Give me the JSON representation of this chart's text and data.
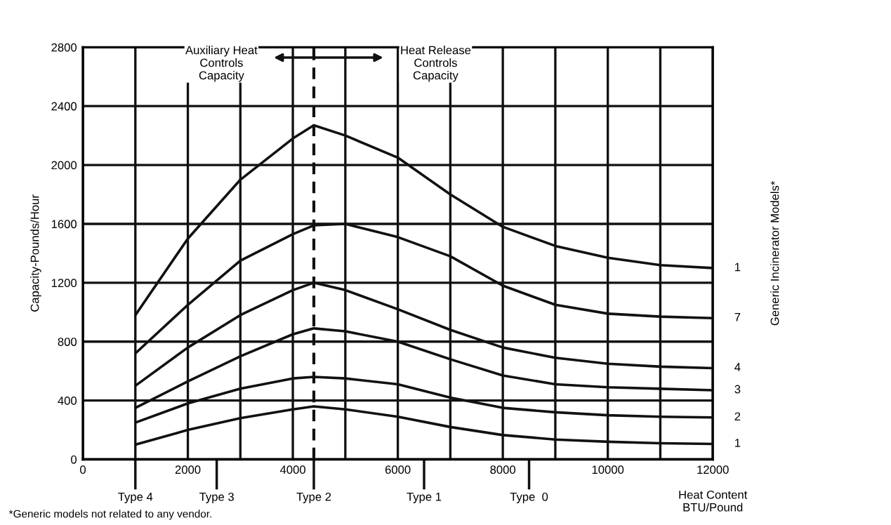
{
  "chart_data": {
    "type": "line",
    "xlabel": "Heat Content\nBTU/Pound",
    "ylabel": "Capacity-Pounds/Hour",
    "xlim": [
      0,
      12000
    ],
    "ylim": [
      0,
      2800
    ],
    "xticks": [
      0,
      {
        "value": 1000,
        "label": null
      },
      2000,
      {
        "value": 3000,
        "label": null
      },
      4000,
      {
        "value": 5000,
        "label": null
      },
      6000,
      {
        "value": 7000,
        "label": null
      },
      8000,
      {
        "value": 9000,
        "label": null
      },
      10000,
      {
        "value": 11000,
        "label": null
      },
      12000
    ],
    "yticks": [
      0,
      400,
      800,
      1200,
      1600,
      2000,
      2400,
      2800
    ],
    "grid": true,
    "marker": "none",
    "line_style": "solid",
    "series": [
      {
        "name": "1",
        "color": "#111111",
        "x": [
          1000,
          2000,
          3000,
          4000,
          4400,
          5000,
          6000,
          7000,
          8000,
          9000,
          10000,
          11000,
          12000
        ],
        "values": [
          980,
          1500,
          1900,
          2180,
          2270,
          2200,
          2050,
          1800,
          1580,
          1450,
          1370,
          1320,
          1300
        ]
      },
      {
        "name": "7",
        "color": "#111111",
        "x": [
          1000,
          2000,
          3000,
          4000,
          4400,
          5000,
          6000,
          7000,
          8000,
          9000,
          10000,
          11000,
          12000
        ],
        "values": [
          720,
          1050,
          1350,
          1530,
          1590,
          1600,
          1510,
          1380,
          1180,
          1050,
          990,
          970,
          960
        ]
      },
      {
        "name": "4",
        "color": "#111111",
        "x": [
          1000,
          2000,
          3000,
          4000,
          4400,
          5000,
          6000,
          7000,
          8000,
          9000,
          10000,
          11000,
          12000
        ],
        "values": [
          500,
          760,
          980,
          1150,
          1200,
          1150,
          1020,
          880,
          760,
          690,
          650,
          630,
          620
        ]
      },
      {
        "name": "3",
        "color": "#111111",
        "x": [
          1000,
          2000,
          3000,
          4000,
          4400,
          5000,
          6000,
          7000,
          8000,
          9000,
          10000,
          11000,
          12000
        ],
        "values": [
          350,
          530,
          700,
          850,
          890,
          870,
          800,
          680,
          570,
          510,
          490,
          480,
          470
        ]
      },
      {
        "name": "2",
        "color": "#111111",
        "x": [
          1000,
          2000,
          3000,
          4000,
          4400,
          5000,
          6000,
          7000,
          8000,
          9000,
          10000,
          11000,
          12000
        ],
        "values": [
          250,
          380,
          480,
          550,
          560,
          550,
          510,
          420,
          350,
          320,
          300,
          290,
          285
        ]
      },
      {
        "name": "1",
        "color": "#111111",
        "x": [
          1000,
          2000,
          3000,
          4000,
          4400,
          5000,
          6000,
          7000,
          8000,
          9000,
          10000,
          11000,
          12000
        ],
        "values": [
          100,
          200,
          280,
          340,
          360,
          340,
          290,
          220,
          165,
          135,
          120,
          110,
          105
        ]
      }
    ],
    "ref_lines": [
      {
        "axis": "x",
        "value": 4400,
        "color": "#111111",
        "line_style": "dashed"
      }
    ],
    "annotations": [
      "Auxiliary Heat\nControls\nCapacity",
      "Heat Release\nControls\nCapacity",
      "Generic Incinerator Models*",
      "Type 4",
      "Type 3",
      "Type 2",
      "Type 1",
      "Type  0",
      "*Generic models not related to any vendor."
    ]
  }
}
